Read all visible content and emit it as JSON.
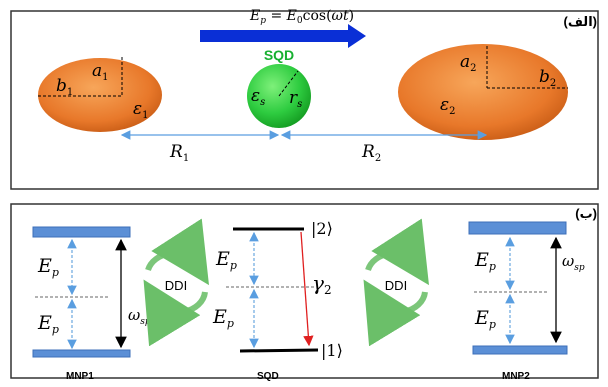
{
  "panel_a": {
    "label": "(الف)",
    "field_equation": "E_p = E_0cos(ωt)",
    "field_equation_parts": {
      "lhs": "E",
      "lhs_sub": "p",
      "eq": " = ",
      "rhs": "E",
      "rhs_sub": "0",
      "rhs_tail": "cos(",
      "omega": "ω",
      "t": "t",
      "close": ")"
    },
    "sqd_label": "SQD",
    "mnp1": {
      "a": "a",
      "a_sub": "1",
      "b": "b",
      "b_sub": "1",
      "eps": "ε",
      "eps_sub": "1"
    },
    "sqd": {
      "eps": "ε",
      "eps_sub": "s",
      "r": "r",
      "r_sub": "s"
    },
    "mnp2": {
      "a": "a",
      "a_sub": "2",
      "b": "b",
      "b_sub": "2",
      "eps": "ε",
      "eps_sub": "2"
    },
    "distance_1": {
      "sym": "R",
      "sub": "1"
    },
    "distance_2": {
      "sym": "R",
      "sub": "2"
    },
    "colors": {
      "orange": "#e8782a",
      "green": "#2ecc40",
      "arrow_blue": "#0a2fd6",
      "border": "#333333"
    }
  },
  "panel_b": {
    "label": "(ب)",
    "ep": {
      "sym": "E",
      "sub": "p"
    },
    "omega_sp": {
      "sym": "ω",
      "sub": "sp"
    },
    "gamma": {
      "sym": "γ",
      "sub": "2"
    },
    "level_2": "|2⟩",
    "level_1": "|1⟩",
    "ddi_label": "DDI",
    "caption_mnp1": "MNP1",
    "caption_sqd": "SQD",
    "caption_mnp2": "MNP2",
    "colors": {
      "level_bar": "#5b8fd6",
      "arrow_light": "#6aa8e0",
      "decay": "#e02020",
      "ddi_green": "#7cc67a"
    }
  }
}
